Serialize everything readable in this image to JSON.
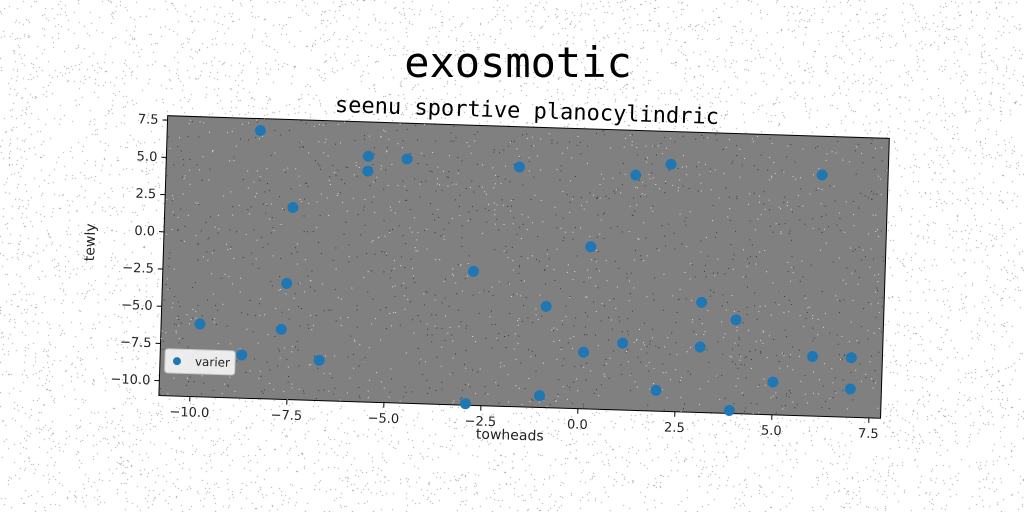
{
  "chart_data": {
    "type": "scatter",
    "title": "exosmotic",
    "subtitle": "seenu sportive planocylindric",
    "xlabel": "towheads",
    "ylabel": "tewly",
    "xlim": [
      -10.8,
      7.8
    ],
    "ylim": [
      -11.0,
      7.8
    ],
    "xticks": [
      -10.0,
      -7.5,
      -5.0,
      -2.5,
      0.0,
      2.5,
      5.0,
      7.5
    ],
    "xtick_labels": [
      "−10.0",
      "−7.5",
      "−5.0",
      "−2.5",
      "0.0",
      "2.5",
      "5.0",
      "7.5"
    ],
    "yticks": [
      7.5,
      5.0,
      2.5,
      0.0,
      -2.5,
      -5.0,
      -7.5,
      -10.0
    ],
    "ytick_labels": [
      "7.5",
      "5.0",
      "2.5",
      "0.0",
      "−2.5",
      "−5.0",
      "−7.5",
      "−10.0"
    ],
    "grid": false,
    "legend_position": "lower-left",
    "background_color": "#808080",
    "marker_color": "#1f77b4",
    "series": [
      {
        "name": "varier",
        "points": [
          {
            "x": -8.4,
            "y": 7.0
          },
          {
            "x": -7.5,
            "y": 1.9
          },
          {
            "x": -7.6,
            "y": -3.2
          },
          {
            "x": -7.7,
            "y": -6.3
          },
          {
            "x": -6.7,
            "y": -8.3
          },
          {
            "x": -9.8,
            "y": -6.1
          },
          {
            "x": -8.7,
            "y": -8.1
          },
          {
            "x": -5.6,
            "y": 5.5
          },
          {
            "x": -5.6,
            "y": 4.5
          },
          {
            "x": -4.6,
            "y": 5.4
          },
          {
            "x": -2.8,
            "y": -2.0
          },
          {
            "x": -1.7,
            "y": 5.1
          },
          {
            "x": -0.9,
            "y": -4.2
          },
          {
            "x": -1.0,
            "y": -10.2
          },
          {
            "x": -2.9,
            "y": -10.9
          },
          {
            "x": 0.2,
            "y": -0.1
          },
          {
            "x": 0.1,
            "y": -7.2
          },
          {
            "x": 1.1,
            "y": -6.5
          },
          {
            "x": 1.3,
            "y": 4.8
          },
          {
            "x": 2.2,
            "y": 5.6
          },
          {
            "x": 2.0,
            "y": -9.6
          },
          {
            "x": 3.1,
            "y": -3.6
          },
          {
            "x": 3.1,
            "y": -6.6
          },
          {
            "x": 4.0,
            "y": -4.7
          },
          {
            "x": 3.9,
            "y": -10.8
          },
          {
            "x": 5.0,
            "y": -8.8
          },
          {
            "x": 6.1,
            "y": 5.2
          },
          {
            "x": 6.0,
            "y": -7.0
          },
          {
            "x": 7.0,
            "y": -7.0
          },
          {
            "x": 7.0,
            "y": -9.1
          }
        ]
      }
    ]
  }
}
